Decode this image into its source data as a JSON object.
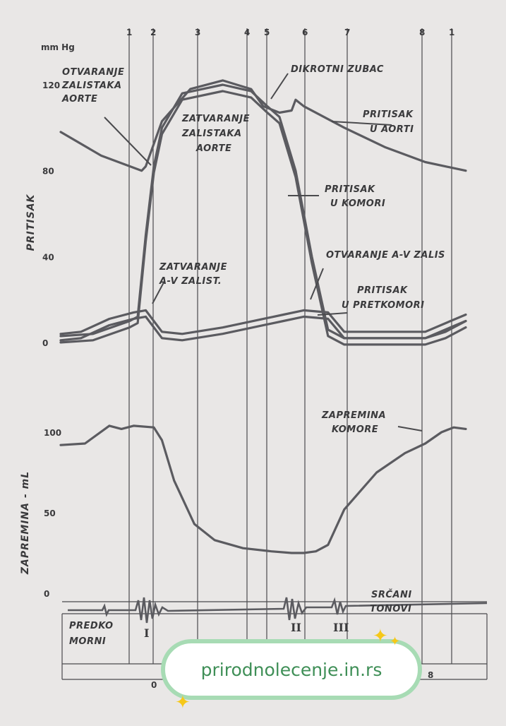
{
  "chart_data": {
    "type": "line",
    "pressure_axis": {
      "unit": "mm Hg",
      "label": "PRITISAK",
      "ticks": [
        "120",
        "80",
        "40",
        "0"
      ],
      "ylim": [
        0,
        120
      ]
    },
    "volume_axis": {
      "label": "ZAPREMINA - mL",
      "ticks": [
        "100",
        "50",
        "0"
      ],
      "ylim": [
        0,
        100
      ]
    },
    "phase_markers": [
      "1",
      "2",
      "3",
      "4",
      "5",
      "6",
      "7",
      "8",
      "1"
    ],
    "x_domain": [
      0,
      100
    ],
    "series": [
      {
        "name": "PRITISAK U AORTI",
        "x": [
          0,
          10,
          20,
          21,
          25,
          32,
          40,
          47,
          50,
          54,
          57,
          58,
          60,
          70,
          80,
          90,
          100
        ],
        "y": [
          98,
          87,
          80,
          82,
          103,
          118,
          122,
          118,
          110,
          107,
          108,
          113,
          110,
          100,
          91,
          84,
          80
        ]
      },
      {
        "name": "PRITISAK U KOMORI",
        "x": [
          0,
          8,
          17,
          19,
          21,
          23,
          25,
          30,
          40,
          47,
          51,
          54,
          58,
          62,
          66,
          70,
          80,
          90,
          95,
          100
        ],
        "y": [
          3,
          4,
          10,
          12,
          50,
          82,
          100,
          116,
          120,
          117,
          110,
          105,
          80,
          40,
          6,
          2,
          2,
          2,
          5,
          10
        ]
      },
      {
        "name": "PRITISAK U PRETKOMORI",
        "x": [
          0,
          5,
          12,
          18,
          21,
          25,
          30,
          40,
          55,
          60,
          66,
          70,
          80,
          90,
          95,
          100
        ],
        "y": [
          4,
          5,
          11,
          14,
          15,
          5,
          4,
          7,
          13,
          15,
          14,
          5,
          5,
          5,
          9,
          13
        ]
      },
      {
        "name": "ZAPREMINA KOMORE",
        "x": [
          0,
          6,
          12,
          15,
          18,
          23,
          25,
          28,
          33,
          38,
          45,
          52,
          57,
          60,
          63,
          66,
          70,
          78,
          85,
          90,
          94,
          97,
          100
        ],
        "y": [
          92,
          93,
          104,
          102,
          104,
          103,
          95,
          70,
          43,
          33,
          28,
          26,
          25,
          25,
          26,
          30,
          52,
          75,
          87,
          93,
          100,
          103,
          102
        ]
      }
    ],
    "annotations": [
      "OTVARANJE ZALISTAKA AORTE",
      "DIKROTNI ZUBAC",
      "ZATVARANJE ZALISTAKA AORTE",
      "PRITISAK U AORTI",
      "PRITISAK U KOMORI",
      "OTVARANJE A-V ZALIS",
      "ZATVARANJE A-V ZALIST.",
      "PRITISAK U PRETKOMORI",
      "ZAPREMINA KOMORE",
      "SRČANI TONOVI",
      "PREDKO MORNI"
    ],
    "heart_sounds": [
      "I",
      "II",
      "III"
    ],
    "bottom_row_labels": [
      "0",
      "8"
    ]
  },
  "watermark": {
    "text": "prirodnolecenje.in.rs"
  },
  "colors": {
    "paper": "#e9e7e6",
    "ink": "#5b5b60",
    "badge_border": "#a7dbb4",
    "badge_text": "#3f8f57",
    "sparkle": "#f6c818"
  }
}
